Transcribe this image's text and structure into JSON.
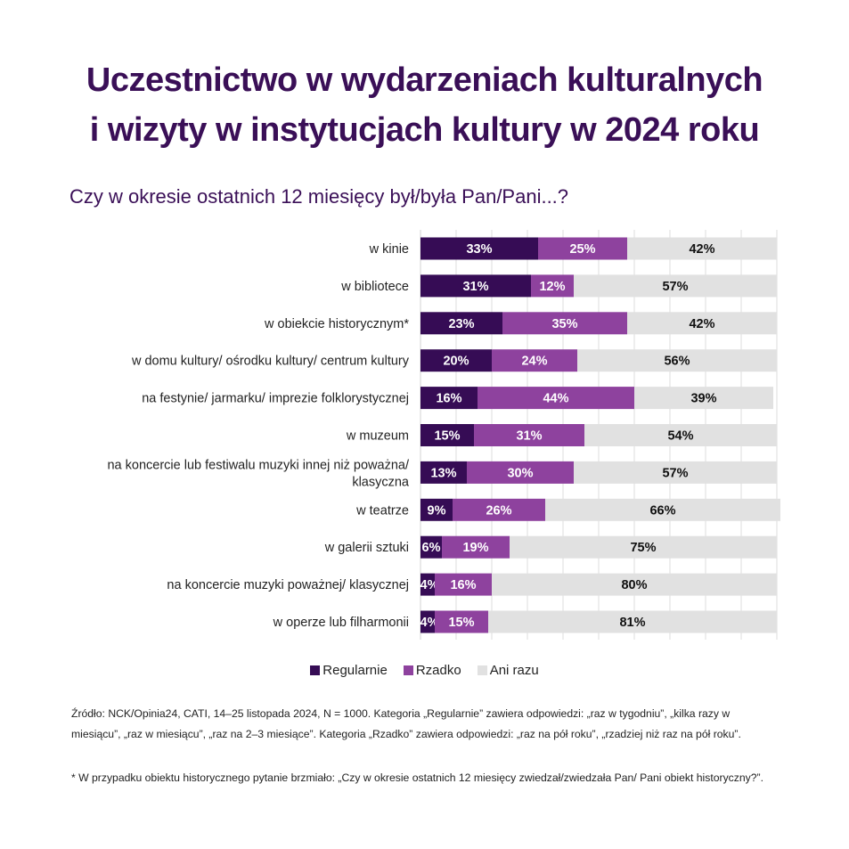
{
  "header": {
    "title_line1": "Uczestnictwo w wydarzeniach kulturalnych",
    "title_line2": "i wizyty w instytucjach kultury w 2024 roku",
    "subtitle": "Czy w okresie ostatnich 12 miesięcy był/była Pan/Pani...?"
  },
  "colors": {
    "regularnie": "#360c55",
    "rzadko": "#8e429e",
    "ani_razu": "#e1e1e1",
    "title": "#3a0f57"
  },
  "chart_data": {
    "type": "bar",
    "orientation": "horizontal",
    "stacked": true,
    "title": "Uczestnictwo w wydarzeniach kulturalnych i wizyty w instytucjach kultury w 2024 roku",
    "subtitle": "Czy w okresie ostatnich 12 miesięcy był/była Pan/Pani...?",
    "xlabel": "",
    "ylabel": "",
    "xlim": [
      0,
      100
    ],
    "grid": true,
    "legend_position": "bottom",
    "categories": [
      "w kinie",
      "w bibliotece",
      "w obiekcie historycznym*",
      "w domu kultury/ ośrodku kultury/ centrum kultury",
      "na festynie/ jarmarku/ imprezie folklorystycznej",
      "w muzeum",
      "na koncercie lub festiwalu muzyki innej niż poważna/ klasyczna",
      "w teatrze",
      "w galerii sztuki",
      "na koncercie muzyki poważnej/ klasycznej",
      "w operze lub filharmonii"
    ],
    "series": [
      {
        "name": "Regularnie",
        "values": [
          33,
          31,
          23,
          20,
          16,
          15,
          13,
          9,
          6,
          4,
          4
        ]
      },
      {
        "name": "Rzadko",
        "values": [
          25,
          12,
          35,
          24,
          44,
          31,
          30,
          26,
          19,
          16,
          15
        ]
      },
      {
        "name": "Ani razu",
        "values": [
          42,
          57,
          42,
          56,
          39,
          54,
          57,
          66,
          75,
          80,
          81
        ]
      }
    ]
  },
  "legend": {
    "items": [
      "Regularnie",
      "Rzadko",
      "Ani razu"
    ]
  },
  "footnotes": {
    "source": "Źródło: NCK/Opinia24, CATI, 14–25 listopada 2024, N = 1000. Kategoria „Regularnie” zawiera odpowiedzi: „raz w tygodniu”, „kilka razy w miesiącu”, „raz w miesiącu”, „raz na 2–3 miesiące”. Kategoria „Rzadko” zawiera odpowiedzi: „raz na pół roku”, „rzadziej niż raz na pół roku”.",
    "note": "* W przypadku obiektu historycznego pytanie brzmiało: „Czy w okresie ostatnich 12 miesięcy zwiedzał/zwiedzała Pan/ Pani obiekt historyczny?”."
  }
}
